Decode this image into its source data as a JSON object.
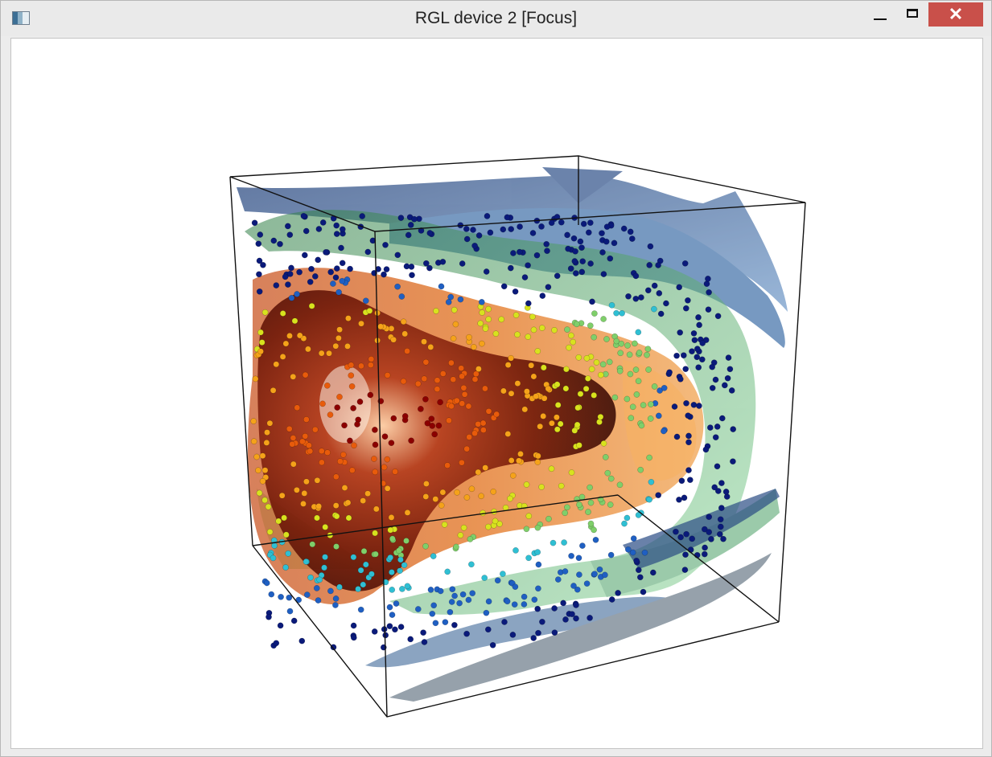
{
  "window": {
    "title": "RGL device 2 [Focus]",
    "icon": "rgl-app-icon",
    "controls": {
      "minimize": "minimize-icon",
      "maximize": "maximize-icon",
      "close": "close-icon",
      "close_color": "#c9504a"
    }
  },
  "scene": {
    "type": "3d-isosurface-scatter",
    "colors": [
      "#8b0000",
      "#e85b0b",
      "#f5a21a",
      "#d8e21e",
      "#7fcf6a",
      "#2fbfd3",
      "#1f5fc2",
      "#0a1a7a"
    ]
  }
}
